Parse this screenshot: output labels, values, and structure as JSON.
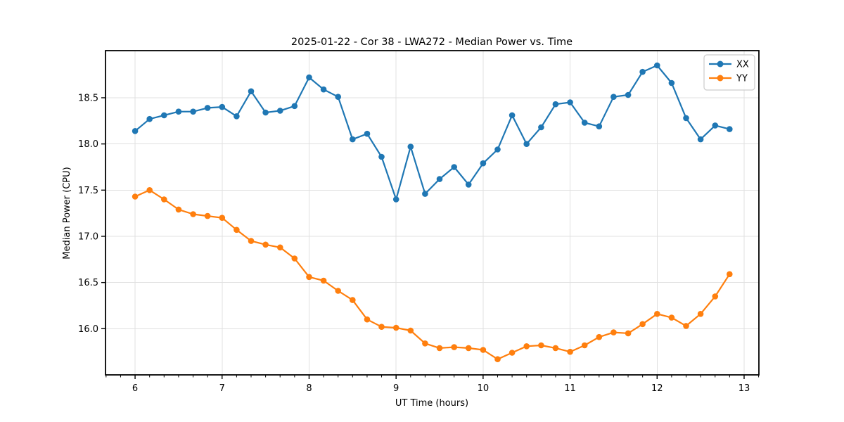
{
  "chart_data": {
    "type": "line",
    "title": "2025-01-22 - Cor 38 - LWA272 - Median Power vs. Time",
    "xlabel": "UT Time (hours)",
    "ylabel": "Median Power (CPU)",
    "xlim": [
      5.66,
      13.17
    ],
    "ylim": [
      15.5,
      19.01
    ],
    "x_ticks": [
      6,
      7,
      8,
      9,
      10,
      11,
      12,
      13
    ],
    "y_ticks": [
      16.0,
      16.5,
      17.0,
      17.5,
      18.0,
      18.5
    ],
    "minor_ticks_per_hour": 6,
    "grid": true,
    "legend_position": "upper right",
    "x": [
      6.0,
      6.167,
      6.333,
      6.5,
      6.667,
      6.833,
      7.0,
      7.167,
      7.333,
      7.5,
      7.667,
      7.833,
      8.0,
      8.167,
      8.333,
      8.5,
      8.667,
      8.833,
      9.0,
      9.167,
      9.333,
      9.5,
      9.667,
      9.833,
      10.0,
      10.167,
      10.333,
      10.5,
      10.667,
      10.833,
      11.0,
      11.167,
      11.333,
      11.5,
      11.667,
      11.833,
      12.0,
      12.167,
      12.333,
      12.5,
      12.667,
      12.833
    ],
    "series": [
      {
        "name": "XX",
        "color": "#1f77b4",
        "values": [
          18.14,
          18.27,
          18.31,
          18.35,
          18.35,
          18.39,
          18.4,
          18.3,
          18.57,
          18.34,
          18.36,
          18.41,
          18.72,
          18.59,
          18.51,
          18.05,
          18.11,
          17.86,
          17.4,
          17.97,
          17.46,
          17.62,
          17.75,
          17.56,
          17.79,
          17.94,
          18.31,
          18.0,
          18.18,
          18.43,
          18.45,
          18.23,
          18.19,
          18.51,
          18.53,
          18.78,
          18.85,
          18.66,
          18.28,
          18.05,
          18.2,
          18.16
        ]
      },
      {
        "name": "YY",
        "color": "#ff7f0e",
        "values": [
          17.43,
          17.5,
          17.4,
          17.29,
          17.24,
          17.22,
          17.2,
          17.07,
          16.95,
          16.91,
          16.88,
          16.76,
          16.56,
          16.52,
          16.41,
          16.31,
          16.1,
          16.02,
          16.01,
          15.98,
          15.84,
          15.79,
          15.8,
          15.79,
          15.77,
          15.67,
          15.74,
          15.81,
          15.82,
          15.79,
          15.75,
          15.82,
          15.91,
          15.96,
          15.95,
          16.05,
          16.16,
          16.12,
          16.03,
          16.16,
          16.35,
          16.59
        ]
      }
    ]
  }
}
